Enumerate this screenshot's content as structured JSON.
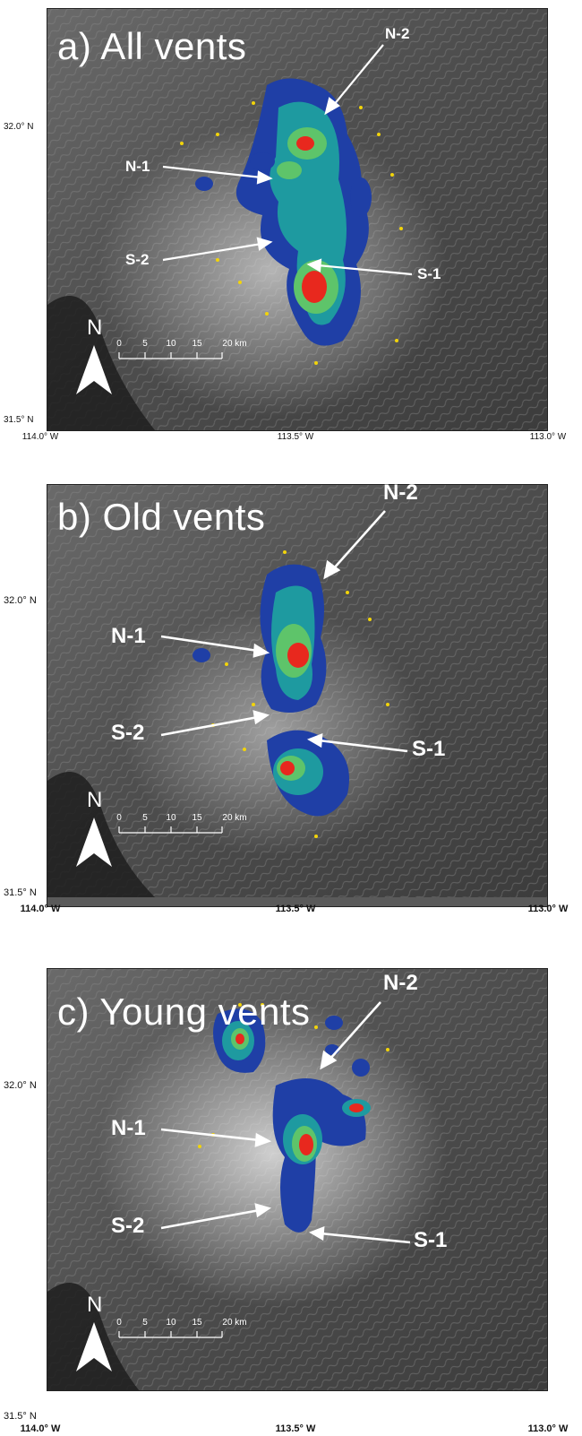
{
  "panels": [
    {
      "title": "a) All vents",
      "lat_labels": [
        "32.0° N",
        "31.5° N"
      ],
      "lon_labels": [
        "114.0° W",
        "113.5° W",
        "113.0° W"
      ],
      "callouts": {
        "n2": "N-2",
        "n1": "N-1",
        "s2": "S-2",
        "s1": "S-1"
      }
    },
    {
      "title": "b) Old vents",
      "lat_labels": [
        "32.0° N",
        "31.5° N"
      ],
      "lon_labels": [
        "114.0° W",
        "113.5° W",
        "113.0° W"
      ],
      "callouts": {
        "n2": "N-2",
        "n1": "N-1",
        "s2": "S-2",
        "s1": "S-1"
      }
    },
    {
      "title": "c) Young vents",
      "lat_labels": [
        "32.0° N",
        "31.5° N"
      ],
      "lon_labels": [
        "114.0° W",
        "113.5° W",
        "113.0° W"
      ],
      "callouts": {
        "n2": "N-2",
        "n1": "N-1",
        "s2": "S-2",
        "s1": "S-1"
      }
    }
  ],
  "scale_bar": {
    "ticks": [
      "0",
      "5",
      "10",
      "15",
      "20 km"
    ]
  },
  "north_arrow": {
    "label": "N"
  },
  "colors": {
    "density_low": "#1f3fa6",
    "density_mid": "#1e9aa0",
    "density_high_green": "#5ec46a",
    "density_peak": "#e8281e",
    "vent_marker": "#f2d40a",
    "hillshade": "#5c5c5c"
  }
}
